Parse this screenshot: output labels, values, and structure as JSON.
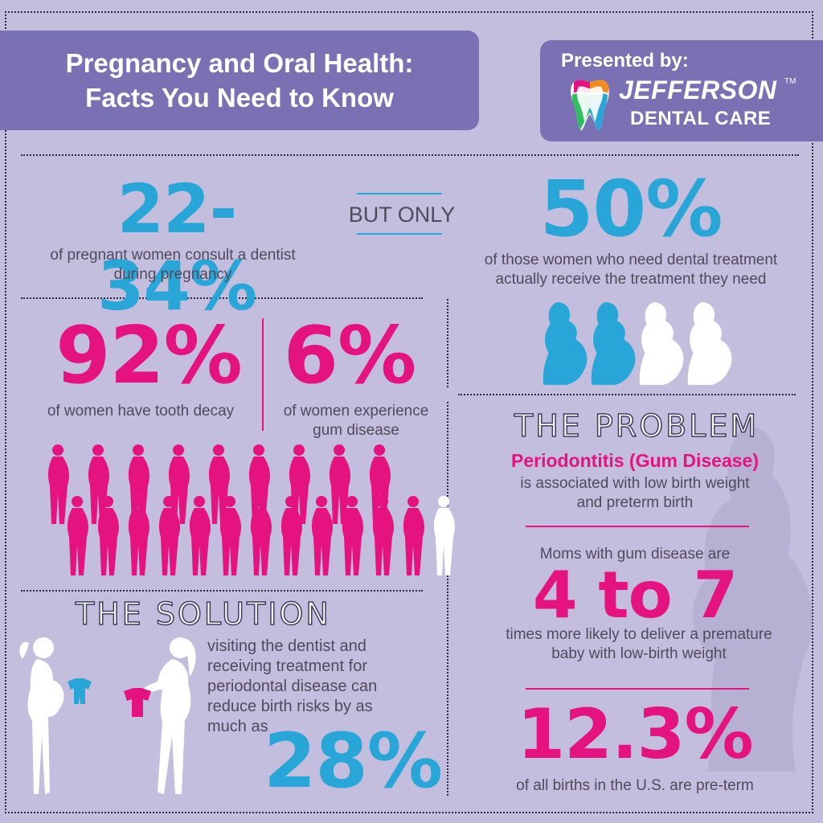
{
  "header": {
    "title_line1": "Pregnancy and Oral Health:",
    "title_line2": "Facts You Need to Know"
  },
  "brand": {
    "presented_by": "Presented by:",
    "name": "JEFFERSON",
    "tm": "TM",
    "sub": "DENTAL CARE",
    "logo_icon": "tooth-logo-icon"
  },
  "stats": {
    "consult": {
      "value": "22-34%",
      "caption_line1": "of pregnant women consult a dentist",
      "caption_line2": "during pregnancy"
    },
    "but_only": "BUT ONLY",
    "receive": {
      "value": "50%",
      "caption_line1": "of those women who need dental treatment",
      "caption_line2": "actually receive the treatment they need",
      "filled_of_four": 2
    },
    "decay": {
      "value": "92%",
      "caption": "of women have tooth decay"
    },
    "gum": {
      "value": "6%",
      "caption_line1": "of women experience",
      "caption_line2": "gum disease"
    },
    "crowd": {
      "pink_count": 21,
      "white_count": 1
    }
  },
  "problem": {
    "heading": "THE PROBLEM",
    "subheading": "Periodontitis (Gum Disease)",
    "text_line1": "is associated with low birth weight",
    "text_line2": "and preterm birth",
    "moms_line": "Moms with gum disease are",
    "risk_value": "4 to 7",
    "risk_line1": "times more likely to deliver a premature",
    "risk_line2": "baby with low-birth weight",
    "preterm_value": "12.3%",
    "preterm_caption": "of all births in the U.S. are pre-term"
  },
  "solution": {
    "heading": "THE SOLUTION",
    "text_lines": [
      "visiting the dentist and",
      "receiving treatment for",
      "periodontal disease can",
      "reduce birth risks by as",
      "much as"
    ],
    "value": "28%"
  },
  "colors": {
    "background": "#c3bedd",
    "banner": "#7a70b4",
    "blue": "#29a6d8",
    "pink": "#e5137f"
  }
}
